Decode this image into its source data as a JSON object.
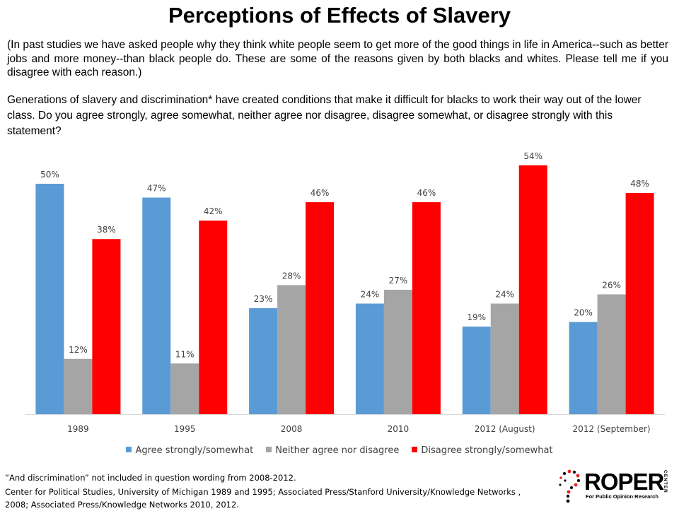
{
  "title": "Perceptions of Effects of Slavery",
  "intro": "(In past studies we have asked people why they think white people seem to get more of the good things in life in America--such as better jobs and more money--than  black people do. These are some of the reasons given by both blacks and whites. Please tell me if you disagree with each reason.)",
  "question": "Generations of slavery and discrimination* have created conditions that make it difficult for blacks to work their way out of the lower class. Do you agree strongly,  agree somewhat, neither agree nor disagree, disagree somewhat, or disagree strongly with this statement?",
  "chart_data": {
    "type": "bar",
    "categories": [
      "1989",
      "1995",
      "2008",
      "2010",
      "2012 (August)",
      "2012 (September)"
    ],
    "series": [
      {
        "name": "Agree strongly/somewhat",
        "color": "#5b9bd5",
        "values": [
          50,
          47,
          23,
          24,
          19,
          20
        ]
      },
      {
        "name": "Neither agree nor disagree",
        "color": "#a5a5a5",
        "values": [
          12,
          11,
          28,
          27,
          24,
          26
        ]
      },
      {
        "name": "Disagree strongly/somewhat",
        "color": "#ff0000",
        "values": [
          38,
          42,
          46,
          46,
          54,
          48
        ]
      }
    ],
    "value_suffix": "%",
    "ylim": [
      0,
      60
    ],
    "grid": false,
    "legend_position": "bottom"
  },
  "footnote": "”And discrimination” not included in question wording from 2008-2012.",
  "source": "Center for Political Studies, University of Michigan 1989 and 1995;  Associated Press/Stanford University/Knowledge Networks , 2008;  Associated Press/Knowledge Networks 2010, 2012.",
  "logo": {
    "word": "ROPER",
    "vertical": "CENTER",
    "tagline": "For Public Opinion Research",
    "accent": "#e8251f"
  }
}
